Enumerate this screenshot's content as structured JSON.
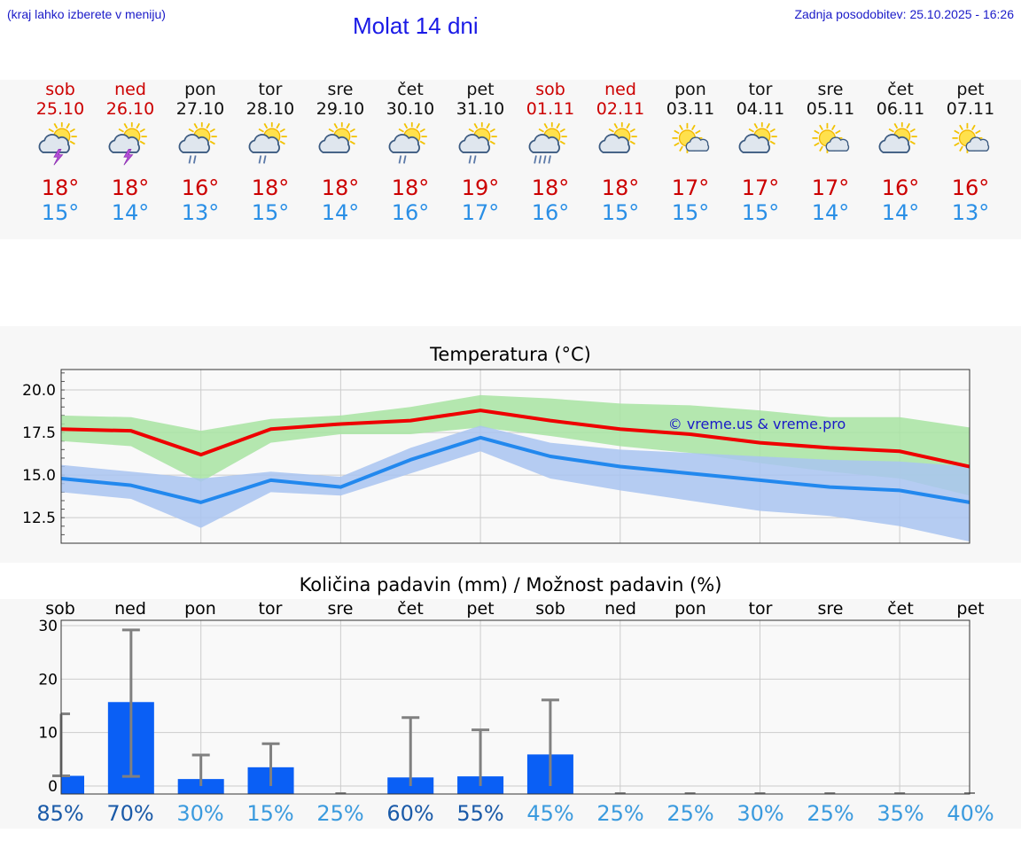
{
  "header": {
    "hint": "(kraj lahko izberete v meniju)",
    "title": "Molat 14 dni",
    "updated": "Zadnja posodobitev: 25.10.2025 - 16:26"
  },
  "days": [
    {
      "name": "sob",
      "date": "25.10",
      "weekend": true,
      "icon": "sun-cloud-thunder",
      "tmax": "18°",
      "tmin": "15°"
    },
    {
      "name": "ned",
      "date": "26.10",
      "weekend": true,
      "icon": "sun-cloud-thunder",
      "tmax": "18°",
      "tmin": "14°"
    },
    {
      "name": "pon",
      "date": "27.10",
      "weekend": false,
      "icon": "sun-cloud-rain",
      "tmax": "16°",
      "tmin": "13°"
    },
    {
      "name": "tor",
      "date": "28.10",
      "weekend": false,
      "icon": "sun-cloud-rain",
      "tmax": "18°",
      "tmin": "15°"
    },
    {
      "name": "sre",
      "date": "29.10",
      "weekend": false,
      "icon": "sun-cloud",
      "tmax": "18°",
      "tmin": "14°"
    },
    {
      "name": "čet",
      "date": "30.10",
      "weekend": false,
      "icon": "sun-cloud-rain",
      "tmax": "18°",
      "tmin": "16°"
    },
    {
      "name": "pet",
      "date": "31.10",
      "weekend": false,
      "icon": "sun-cloud-rain",
      "tmax": "19°",
      "tmin": "17°"
    },
    {
      "name": "sob",
      "date": "01.11",
      "weekend": true,
      "icon": "sun-cloud-heavy-rain",
      "tmax": "18°",
      "tmin": "16°"
    },
    {
      "name": "ned",
      "date": "02.11",
      "weekend": true,
      "icon": "sun-cloud",
      "tmax": "18°",
      "tmin": "15°"
    },
    {
      "name": "pon",
      "date": "03.11",
      "weekend": false,
      "icon": "sun-small-cloud",
      "tmax": "17°",
      "tmin": "15°"
    },
    {
      "name": "tor",
      "date": "04.11",
      "weekend": false,
      "icon": "sun-cloud",
      "tmax": "17°",
      "tmin": "15°"
    },
    {
      "name": "sre",
      "date": "05.11",
      "weekend": false,
      "icon": "sun-small-cloud",
      "tmax": "17°",
      "tmin": "14°"
    },
    {
      "name": "čet",
      "date": "06.11",
      "weekend": false,
      "icon": "sun-cloud",
      "tmax": "16°",
      "tmin": "14°"
    },
    {
      "name": "pet",
      "date": "07.11",
      "weekend": false,
      "icon": "sun-small-cloud",
      "tmax": "16°",
      "tmin": "13°"
    }
  ],
  "colors": {
    "weekend": "#cc0000",
    "tmax": "#cc0000",
    "tmin": "#2a8fe6",
    "band_max": "#a8e4a2",
    "band_min": "#a9c4f1",
    "line_max": "#ee0000",
    "line_min": "#2288ee",
    "bar": "#0a5ff5"
  },
  "chart_data": [
    {
      "type": "line",
      "title": "Temperatura (°C)",
      "watermark": "© vreme.us & vreme.pro",
      "ylim": [
        11,
        21.2
      ],
      "yticks": [
        "20.0",
        "17.5",
        "15.0",
        "12.5"
      ],
      "ytick_values": [
        20,
        17.5,
        15,
        12.5
      ],
      "x": [
        0,
        1,
        2,
        3,
        4,
        5,
        6,
        7,
        8,
        9,
        10,
        11,
        12,
        13
      ],
      "series": [
        {
          "name": "max",
          "values": [
            17.7,
            17.6,
            16.2,
            17.7,
            18.0,
            18.2,
            18.8,
            18.2,
            17.7,
            17.4,
            16.9,
            16.6,
            16.4,
            15.5
          ],
          "band_low": [
            17.0,
            16.7,
            14.6,
            16.9,
            17.4,
            17.4,
            17.8,
            17.3,
            16.7,
            16.3,
            15.7,
            15.2,
            14.8,
            13.8
          ],
          "band_high": [
            18.5,
            18.4,
            17.6,
            18.3,
            18.5,
            19.0,
            19.7,
            19.5,
            19.2,
            19.1,
            18.8,
            18.4,
            18.4,
            17.8
          ]
        },
        {
          "name": "min",
          "values": [
            14.8,
            14.4,
            13.4,
            14.7,
            14.3,
            15.9,
            17.2,
            16.1,
            15.5,
            15.1,
            14.7,
            14.3,
            14.1,
            13.4
          ],
          "band_low": [
            14.0,
            13.6,
            11.9,
            14.0,
            13.8,
            15.1,
            16.4,
            14.8,
            14.1,
            13.5,
            12.9,
            12.6,
            12.0,
            11.1
          ],
          "band_high": [
            15.6,
            15.2,
            14.8,
            15.2,
            14.9,
            16.6,
            17.9,
            16.9,
            16.5,
            16.3,
            16.1,
            15.9,
            15.8,
            15.5
          ]
        }
      ]
    },
    {
      "type": "bar",
      "title": "Količina padavin (mm) / Možnost padavin (%)",
      "ylim": [
        -1.5,
        31
      ],
      "yticks": [
        "30",
        "20",
        "10",
        "0"
      ],
      "ytick_values": [
        30,
        20,
        10,
        0
      ],
      "categories": [
        "sob",
        "ned",
        "pon",
        "tor",
        "sre",
        "čet",
        "pet",
        "sob",
        "ned",
        "pon",
        "tor",
        "sre",
        "čet",
        "pet"
      ],
      "values": [
        1.9,
        15.7,
        1.3,
        3.5,
        0,
        1.6,
        1.8,
        5.9,
        0,
        0,
        0,
        0,
        0,
        0
      ],
      "error_high": [
        13.5,
        29.2,
        5.8,
        7.9,
        0,
        12.8,
        10.5,
        16.1,
        0,
        0,
        0,
        0,
        0,
        0
      ],
      "error_low": [
        1.9,
        1.8,
        0,
        0,
        0,
        0,
        0,
        0,
        0,
        0,
        0,
        0,
        0,
        0
      ],
      "probabilities": [
        "85%",
        "70%",
        "30%",
        "15%",
        "25%",
        "60%",
        "55%",
        "45%",
        "25%",
        "25%",
        "30%",
        "25%",
        "35%",
        "40%"
      ]
    }
  ]
}
